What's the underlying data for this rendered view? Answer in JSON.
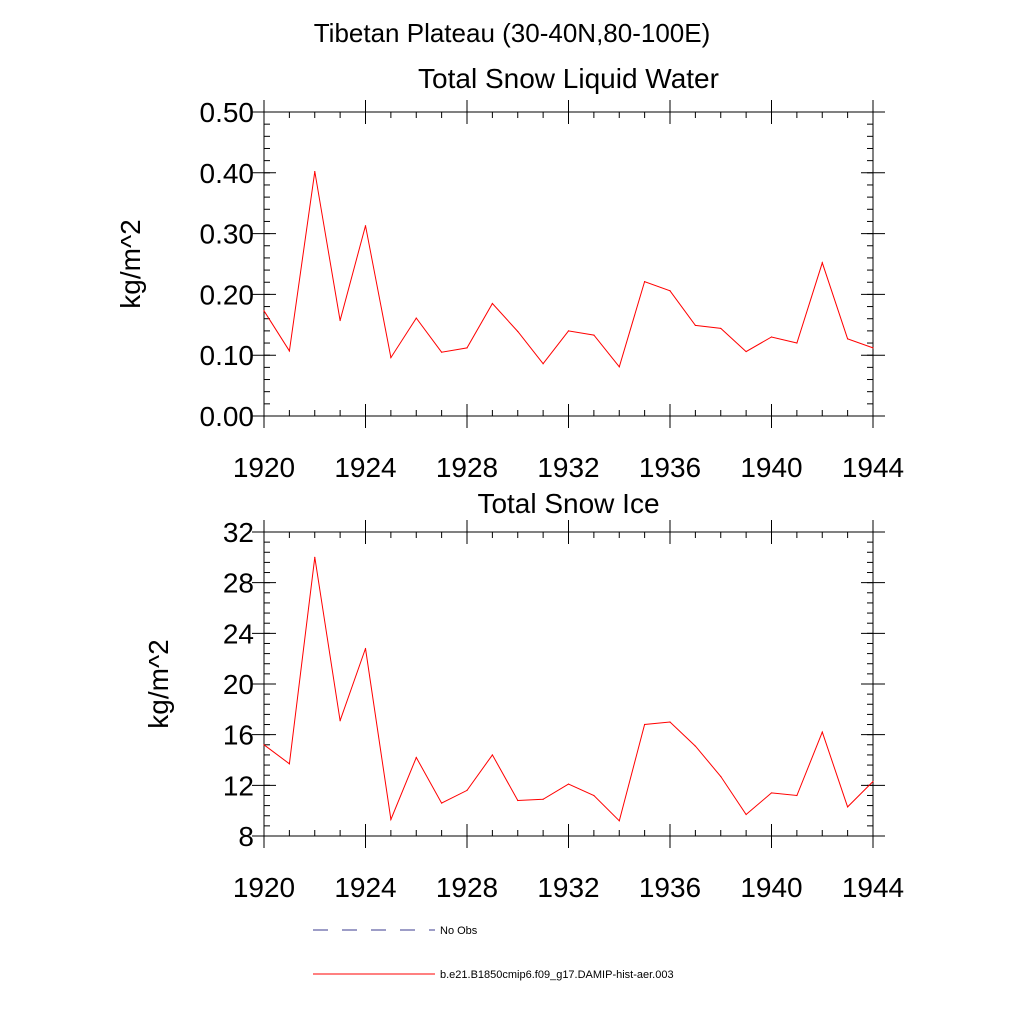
{
  "figure_title": "Tibetan Plateau (30-40N,80-100E)",
  "legend": {
    "obs_label": "No Obs",
    "model_label": "b.e21.B1850cmip6.f09_g17.DAMIP-hist-aer.003",
    "obs_color": "#3b3b8f",
    "model_color": "#ff0000"
  },
  "chart_data": [
    {
      "type": "line",
      "title": "Total Snow Liquid Water",
      "xlabel": "",
      "ylabel": "kg/m^2",
      "xlim": [
        1920,
        1944
      ],
      "ylim": [
        0,
        0.5
      ],
      "x_ticks": [
        1920,
        1924,
        1928,
        1932,
        1936,
        1940,
        1944
      ],
      "x_tick_labels": [
        "1920",
        "1924",
        "1928",
        "1932",
        "1936",
        "1940",
        "1944"
      ],
      "y_ticks": [
        0,
        0.1,
        0.2,
        0.3,
        0.4,
        0.5
      ],
      "y_tick_labels": [
        "0.00",
        "0.10",
        "0.20",
        "0.30",
        "0.40",
        "0.50"
      ],
      "grid": false,
      "series": [
        {
          "name": "b.e21.B1850cmip6.f09_g17.DAMIP-hist-aer.003",
          "color": "#ff0000",
          "x": [
            1920,
            1921,
            1922,
            1923,
            1924,
            1925,
            1926,
            1927,
            1928,
            1929,
            1930,
            1931,
            1932,
            1933,
            1934,
            1935,
            1936,
            1937,
            1938,
            1939,
            1940,
            1941,
            1942,
            1943,
            1944
          ],
          "values": [
            0.173,
            0.107,
            0.402,
            0.157,
            0.313,
            0.096,
            0.161,
            0.105,
            0.112,
            0.185,
            0.139,
            0.086,
            0.14,
            0.133,
            0.081,
            0.221,
            0.206,
            0.149,
            0.144,
            0.106,
            0.13,
            0.12,
            0.252,
            0.127,
            0.112
          ]
        }
      ]
    },
    {
      "type": "line",
      "title": "Total Snow Ice",
      "xlabel": "",
      "ylabel": "kg/m^2",
      "xlim": [
        1920,
        1944
      ],
      "ylim": [
        8,
        32
      ],
      "x_ticks": [
        1920,
        1924,
        1928,
        1932,
        1936,
        1940,
        1944
      ],
      "x_tick_labels": [
        "1920",
        "1924",
        "1928",
        "1932",
        "1936",
        "1940",
        "1944"
      ],
      "y_ticks": [
        8,
        12,
        16,
        20,
        24,
        28,
        32
      ],
      "y_tick_labels": [
        "8",
        "12",
        "16",
        "20",
        "24",
        "28",
        "32"
      ],
      "grid": false,
      "series": [
        {
          "name": "b.e21.B1850cmip6.f09_g17.DAMIP-hist-aer.003",
          "color": "#ff0000",
          "x": [
            1920,
            1921,
            1922,
            1923,
            1924,
            1925,
            1926,
            1927,
            1928,
            1929,
            1930,
            1931,
            1932,
            1933,
            1934,
            1935,
            1936,
            1937,
            1938,
            1939,
            1940,
            1941,
            1942,
            1943,
            1944
          ],
          "values": [
            15.2,
            13.7,
            30.0,
            17.1,
            22.8,
            9.3,
            14.2,
            10.6,
            11.6,
            14.4,
            10.8,
            10.9,
            12.1,
            11.2,
            9.2,
            16.8,
            17.0,
            15.1,
            12.7,
            9.7,
            11.4,
            11.2,
            16.2,
            10.3,
            12.3
          ]
        }
      ]
    }
  ]
}
